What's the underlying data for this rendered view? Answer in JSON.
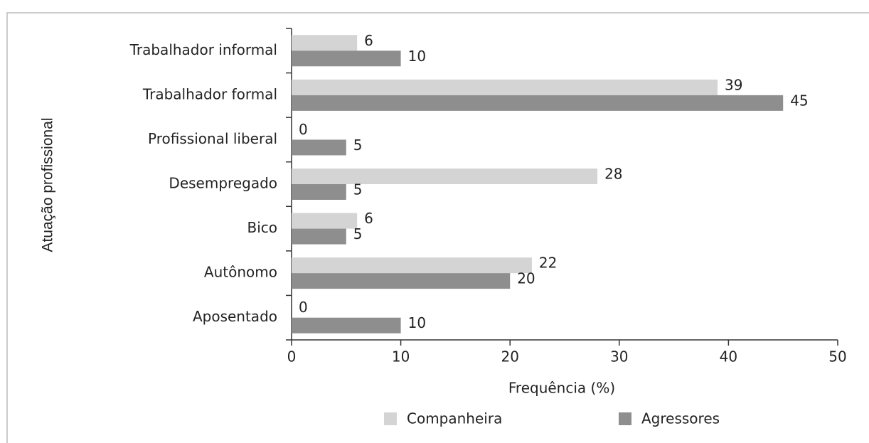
{
  "chart_data": {
    "type": "bar",
    "orientation": "horizontal",
    "categories": [
      "Trabalhador informal",
      "Trabalhador formal",
      "Profissional liberal",
      "Desempregado",
      "Bico",
      "Autônomo",
      "Aposentado"
    ],
    "series": [
      {
        "name": "Companheira",
        "color": "#d4d4d4",
        "values": [
          6,
          39,
          0,
          28,
          6,
          22,
          0
        ]
      },
      {
        "name": "Agressores",
        "color": "#8e8e8e",
        "values": [
          10,
          45,
          5,
          5,
          5,
          20,
          10
        ]
      }
    ],
    "xlim": [
      0,
      50
    ],
    "xticks": [
      0,
      10,
      20,
      30,
      40,
      50
    ],
    "xlabel": "Frequência (%)",
    "ylabel": "Atuação profissional",
    "legend": "bottom"
  }
}
